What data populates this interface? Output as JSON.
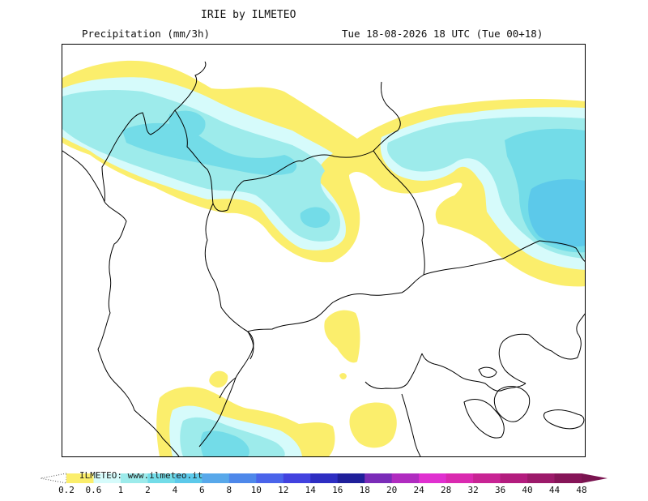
{
  "header": {
    "title": "IRIE by ILMETEO",
    "subtitle": "Precipitation (mm/3h)",
    "valid_time": "Tue 18-08-2026 18 UTC (Tue 00+18)"
  },
  "legend": {
    "credit": "ILMETEO: www.ilmeteo.it",
    "ticks": [
      "0.2",
      "0.6",
      "1",
      "2",
      "4",
      "6",
      "8",
      "10",
      "12",
      "14",
      "16",
      "18",
      "20",
      "24",
      "28",
      "32",
      "36",
      "40",
      "44",
      "48"
    ],
    "colors": [
      "#fbee6c",
      "#d6fbfb",
      "#9debeb",
      "#73dce8",
      "#5cc9ea",
      "#58a8ea",
      "#4e88ea",
      "#4a64ea",
      "#4242df",
      "#2e2ec2",
      "#1f1f9a",
      "#7a2cb8",
      "#b02cc0",
      "#e030d0",
      "#da2ab0",
      "#c82494",
      "#b31c7e",
      "#9c1a6a",
      "#861558"
    ],
    "below_min_color": "#ffffff",
    "above_max_color": "#7a1450"
  },
  "map": {
    "precip_colors": {
      "light": "#fbee6c",
      "very_light_cyan": "#d6fbfb",
      "cyan": "#9debeb",
      "medium_cyan": "#73dce8",
      "strong_cyan": "#5cc9ea"
    },
    "border_color": "#000000"
  }
}
